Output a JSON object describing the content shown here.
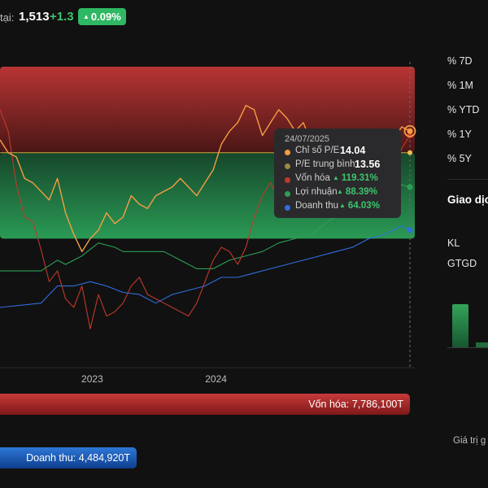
{
  "header": {
    "price_label": "tại:",
    "price": "1,513",
    "change": "+1.3",
    "change_pct": "0.09%"
  },
  "tooltip": {
    "date": "24/07/2025",
    "rows": [
      {
        "label": "Chỉ số P/E",
        "value": "14.04",
        "color": "#f59e42",
        "arrow": false
      },
      {
        "label": "P/E trung bình",
        "value": "13.56",
        "color": "#9b8a43",
        "arrow": false
      },
      {
        "label": "Vốn hóa",
        "value": "119.31%",
        "color": "#c0392b",
        "arrow": true
      },
      {
        "label": "Lợi nhuận",
        "value": "88.39%",
        "color": "#2e9e55",
        "arrow": true
      },
      {
        "label": "Doanh thu",
        "value": "64.03%",
        "color": "#2f6fe0",
        "arrow": true
      }
    ]
  },
  "right_panel": {
    "ranges": [
      "% 7D",
      "% 1M",
      "% YTD",
      "% 1Y",
      "% 5Y"
    ],
    "title": "Giao dịc",
    "labels": [
      "KL",
      "GTGD"
    ],
    "footer": "Giá trị g"
  },
  "bottom_bars": {
    "market_cap": "Vốn hóa: 7,786,100T",
    "revenue": "Doanh thu: 4,484,920T"
  },
  "colors": {
    "pe": "#f59e42",
    "pe_avg": "#9b8a43",
    "market_cap": "#c0392b",
    "profit": "#2e9e55",
    "revenue": "#2f6fe0",
    "up_green": "#3ec46d"
  },
  "chart_data": {
    "type": "line",
    "x_tick_labels": [
      "2023",
      "2024"
    ],
    "series": [
      {
        "name": "Chỉ số P/E",
        "points": [
          [
            0,
            0.06
          ],
          [
            0.02,
            0.0
          ],
          [
            0.04,
            -0.02
          ],
          [
            0.06,
            -0.12
          ],
          [
            0.08,
            -0.14
          ],
          [
            0.1,
            -0.18
          ],
          [
            0.12,
            -0.22
          ],
          [
            0.14,
            -0.12
          ],
          [
            0.16,
            -0.28
          ],
          [
            0.18,
            -0.38
          ],
          [
            0.2,
            -0.46
          ],
          [
            0.22,
            -0.4
          ],
          [
            0.24,
            -0.36
          ],
          [
            0.26,
            -0.28
          ],
          [
            0.28,
            -0.33
          ],
          [
            0.3,
            -0.3
          ],
          [
            0.32,
            -0.2
          ],
          [
            0.34,
            -0.24
          ],
          [
            0.36,
            -0.26
          ],
          [
            0.38,
            -0.2
          ],
          [
            0.4,
            -0.18
          ],
          [
            0.42,
            -0.16
          ],
          [
            0.44,
            -0.12
          ],
          [
            0.46,
            -0.16
          ],
          [
            0.48,
            -0.2
          ],
          [
            0.5,
            -0.14
          ],
          [
            0.52,
            -0.08
          ],
          [
            0.54,
            0.04
          ],
          [
            0.56,
            0.1
          ],
          [
            0.58,
            0.14
          ],
          [
            0.6,
            0.22
          ],
          [
            0.62,
            0.2
          ],
          [
            0.64,
            0.08
          ],
          [
            0.66,
            0.14
          ],
          [
            0.68,
            0.2
          ],
          [
            0.7,
            0.16
          ],
          [
            0.72,
            0.1
          ],
          [
            0.74,
            0.14
          ],
          [
            0.76,
            0.04
          ],
          [
            0.78,
            0.06
          ],
          [
            0.8,
            0.0
          ],
          [
            0.82,
            -0.04
          ],
          [
            0.84,
            -0.06
          ],
          [
            0.86,
            -0.12
          ],
          [
            0.88,
            -0.08
          ],
          [
            0.9,
            -0.16
          ],
          [
            0.92,
            -0.1
          ],
          [
            0.94,
            -0.14
          ],
          [
            0.96,
            0.06
          ],
          [
            0.98,
            0.12
          ],
          [
            1.0,
            0.1
          ]
        ]
      },
      {
        "name": "P/E trung bình",
        "points": [
          [
            0,
            0
          ],
          [
            1,
            0
          ]
        ]
      },
      {
        "name": "Vốn hóa",
        "points": [
          [
            0,
            0.2
          ],
          [
            0.02,
            0.1
          ],
          [
            0.04,
            -0.15
          ],
          [
            0.06,
            -0.3
          ],
          [
            0.08,
            -0.32
          ],
          [
            0.1,
            -0.45
          ],
          [
            0.12,
            -0.6
          ],
          [
            0.14,
            -0.55
          ],
          [
            0.16,
            -0.68
          ],
          [
            0.18,
            -0.72
          ],
          [
            0.2,
            -0.62
          ],
          [
            0.22,
            -0.82
          ],
          [
            0.24,
            -0.66
          ],
          [
            0.26,
            -0.76
          ],
          [
            0.28,
            -0.74
          ],
          [
            0.3,
            -0.7
          ],
          [
            0.32,
            -0.62
          ],
          [
            0.34,
            -0.58
          ],
          [
            0.36,
            -0.66
          ],
          [
            0.38,
            -0.68
          ],
          [
            0.4,
            -0.7
          ],
          [
            0.42,
            -0.72
          ],
          [
            0.44,
            -0.74
          ],
          [
            0.46,
            -0.76
          ],
          [
            0.48,
            -0.7
          ],
          [
            0.5,
            -0.6
          ],
          [
            0.52,
            -0.5
          ],
          [
            0.54,
            -0.44
          ],
          [
            0.56,
            -0.46
          ],
          [
            0.58,
            -0.52
          ],
          [
            0.6,
            -0.44
          ],
          [
            0.62,
            -0.3
          ],
          [
            0.64,
            -0.2
          ],
          [
            0.66,
            -0.14
          ],
          [
            0.68,
            -0.22
          ],
          [
            0.7,
            -0.14
          ],
          [
            0.72,
            -0.2
          ],
          [
            0.74,
            -0.18
          ],
          [
            0.76,
            -0.2
          ],
          [
            0.78,
            -0.16
          ],
          [
            0.8,
            -0.1
          ],
          [
            0.82,
            -0.16
          ],
          [
            0.84,
            -0.06
          ],
          [
            0.86,
            -0.1
          ],
          [
            0.88,
            -0.08
          ],
          [
            0.9,
            -0.02
          ],
          [
            0.92,
            -0.12
          ],
          [
            0.94,
            -0.2
          ],
          [
            0.96,
            -0.1
          ],
          [
            0.98,
            0.02
          ],
          [
            1.0,
            0.08
          ]
        ]
      },
      {
        "name": "Lợi nhuận",
        "points": [
          [
            0,
            -0.55
          ],
          [
            0.1,
            -0.55
          ],
          [
            0.14,
            -0.5
          ],
          [
            0.16,
            -0.52
          ],
          [
            0.2,
            -0.48
          ],
          [
            0.24,
            -0.42
          ],
          [
            0.28,
            -0.44
          ],
          [
            0.3,
            -0.46
          ],
          [
            0.4,
            -0.46
          ],
          [
            0.44,
            -0.5
          ],
          [
            0.48,
            -0.54
          ],
          [
            0.52,
            -0.54
          ],
          [
            0.56,
            -0.5
          ],
          [
            0.6,
            -0.48
          ],
          [
            0.64,
            -0.46
          ],
          [
            0.68,
            -0.42
          ],
          [
            0.72,
            -0.4
          ],
          [
            0.76,
            -0.38
          ],
          [
            0.8,
            -0.32
          ],
          [
            0.84,
            -0.28
          ],
          [
            0.88,
            -0.22
          ],
          [
            0.92,
            -0.18
          ],
          [
            0.96,
            -0.14
          ],
          [
            1.0,
            -0.16
          ]
        ]
      },
      {
        "name": "Doanh thu",
        "points": [
          [
            0,
            -0.72
          ],
          [
            0.1,
            -0.7
          ],
          [
            0.14,
            -0.62
          ],
          [
            0.18,
            -0.62
          ],
          [
            0.22,
            -0.6
          ],
          [
            0.26,
            -0.62
          ],
          [
            0.3,
            -0.65
          ],
          [
            0.34,
            -0.66
          ],
          [
            0.38,
            -0.7
          ],
          [
            0.42,
            -0.66
          ],
          [
            0.46,
            -0.64
          ],
          [
            0.5,
            -0.62
          ],
          [
            0.54,
            -0.58
          ],
          [
            0.58,
            -0.58
          ],
          [
            0.62,
            -0.56
          ],
          [
            0.66,
            -0.54
          ],
          [
            0.7,
            -0.52
          ],
          [
            0.74,
            -0.5
          ],
          [
            0.78,
            -0.48
          ],
          [
            0.82,
            -0.46
          ],
          [
            0.86,
            -0.44
          ],
          [
            0.9,
            -0.4
          ],
          [
            0.94,
            -0.38
          ],
          [
            0.98,
            -0.34
          ],
          [
            1.0,
            -0.36
          ]
        ]
      }
    ],
    "ylim": [
      -1,
      0.4
    ],
    "xlim": [
      0,
      1
    ],
    "grid": false,
    "bands": [
      {
        "from": 0.0,
        "to": 0.4,
        "color": "red"
      },
      {
        "from": -0.4,
        "to": 0.0,
        "color": "green"
      }
    ]
  }
}
